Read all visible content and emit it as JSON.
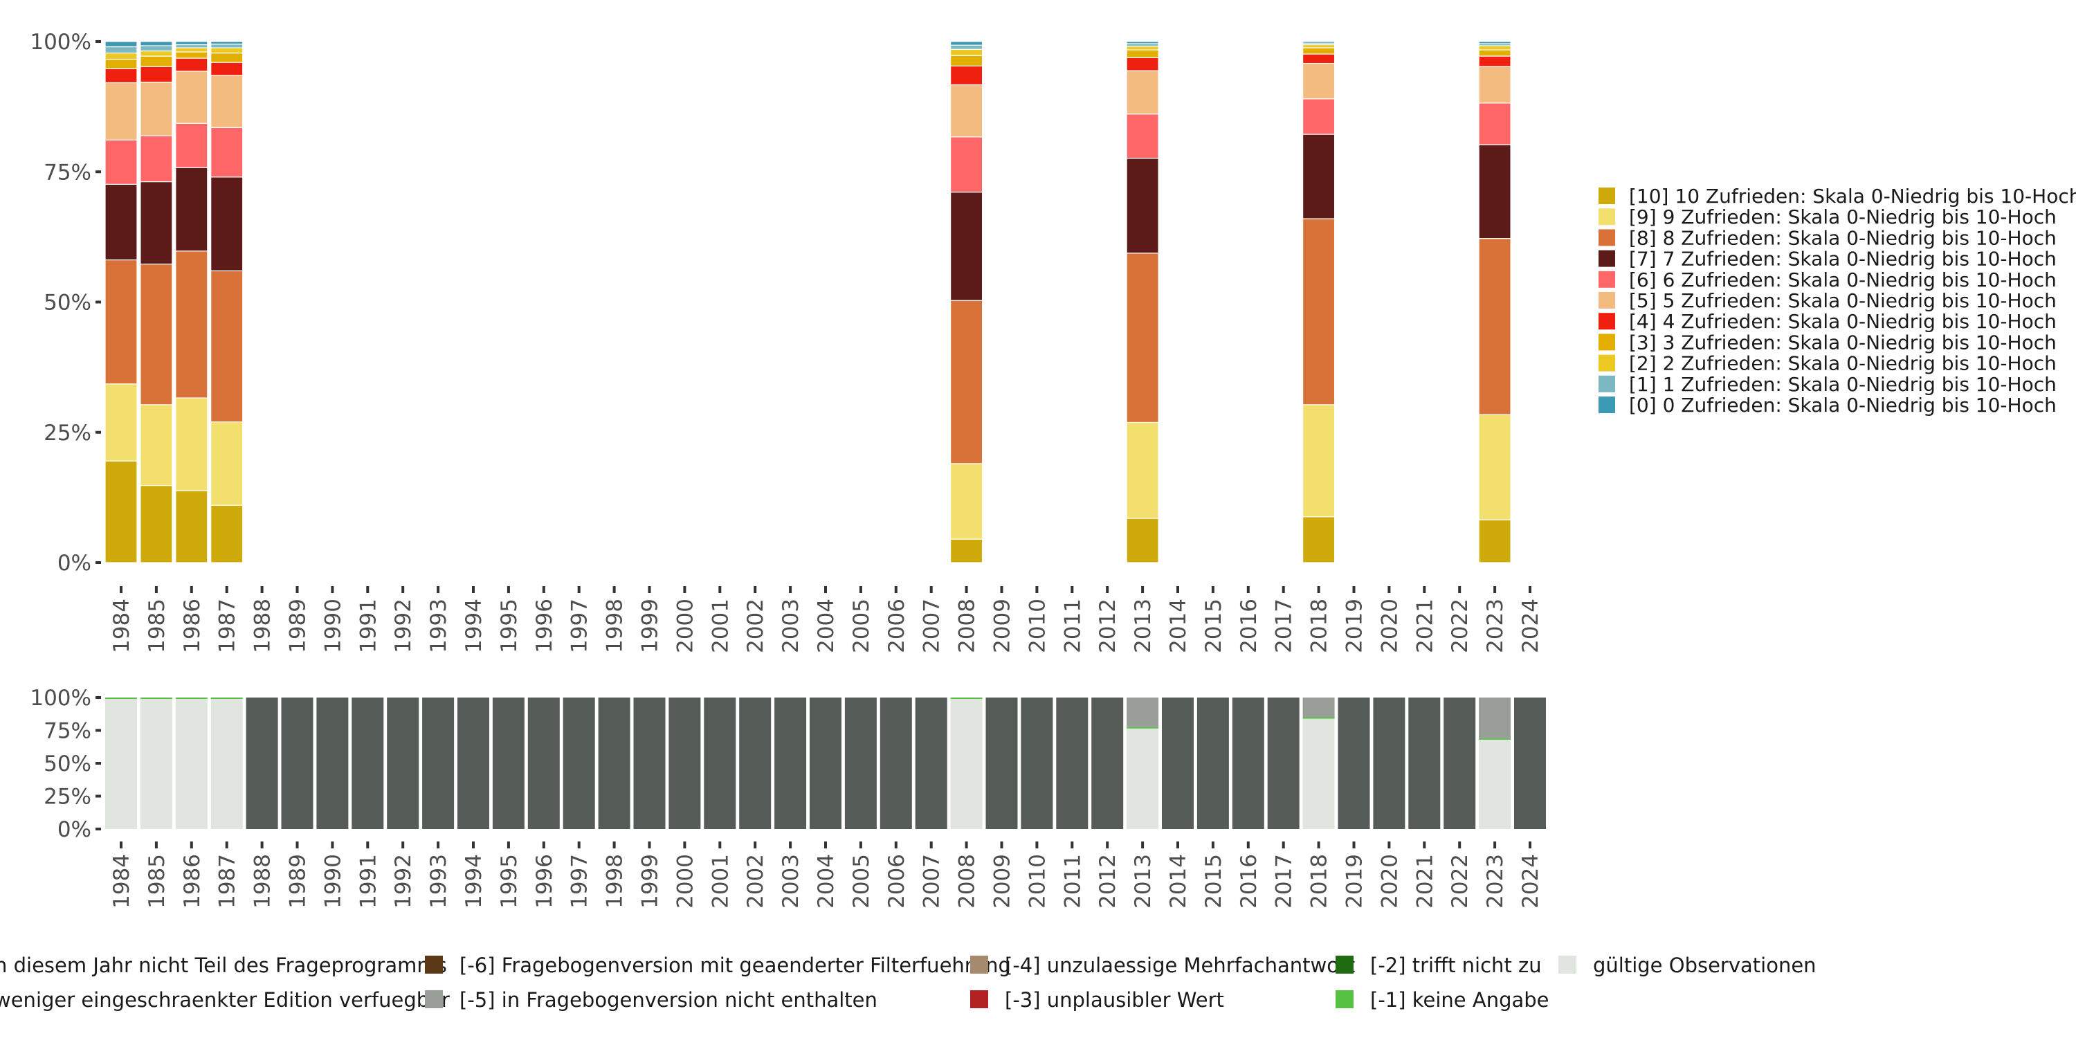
{
  "chart_data": [
    {
      "type": "bar",
      "stacked": true,
      "percent": true,
      "title": "",
      "xlabel": "",
      "ylabel": "",
      "ylim": [
        0,
        1
      ],
      "yticks": [
        "0%",
        "25%",
        "50%",
        "75%",
        "100%"
      ],
      "years": [
        "1984",
        "1985",
        "1986",
        "1987",
        "1988",
        "1989",
        "1990",
        "1991",
        "1992",
        "1993",
        "1994",
        "1995",
        "1996",
        "1997",
        "1998",
        "1999",
        "2000",
        "2001",
        "2002",
        "2003",
        "2004",
        "2005",
        "2006",
        "2007",
        "2008",
        "2009",
        "2010",
        "2011",
        "2012",
        "2013",
        "2014",
        "2015",
        "2016",
        "2017",
        "2018",
        "2019",
        "2020",
        "2021",
        "2022",
        "2023",
        "2024"
      ],
      "legend_position": "right",
      "series": [
        {
          "name": "[10] 10 Zufrieden: Skala 0-Niedrig bis 10-Hoch",
          "color": "#cfaa0b"
        },
        {
          "name": "[9] 9 Zufrieden: Skala 0-Niedrig bis 10-Hoch",
          "color": "#f2df6d"
        },
        {
          "name": "[8] 8 Zufrieden: Skala 0-Niedrig bis 10-Hoch",
          "color": "#d97238"
        },
        {
          "name": "[7] 7 Zufrieden: Skala 0-Niedrig bis 10-Hoch",
          "color": "#5c1a18"
        },
        {
          "name": "[6] 6 Zufrieden: Skala 0-Niedrig bis 10-Hoch",
          "color": "#ff6667"
        },
        {
          "name": "[5] 5 Zufrieden: Skala 0-Niedrig bis 10-Hoch",
          "color": "#f3bb80"
        },
        {
          "name": "[4] 4 Zufrieden: Skala 0-Niedrig bis 10-Hoch",
          "color": "#ef2010"
        },
        {
          "name": "[3] 3 Zufrieden: Skala 0-Niedrig bis 10-Hoch",
          "color": "#e2ae00"
        },
        {
          "name": "[2] 2 Zufrieden: Skala 0-Niedrig bis 10-Hoch",
          "color": "#ecc922"
        },
        {
          "name": "[1] 1 Zufrieden: Skala 0-Niedrig bis 10-Hoch",
          "color": "#7bb8c2"
        },
        {
          "name": "[0] 0 Zufrieden: Skala 0-Niedrig bis 10-Hoch",
          "color": "#3c9ab5"
        }
      ],
      "legend_order": [
        10,
        9,
        8,
        7,
        6,
        5,
        4,
        3,
        2,
        1,
        0
      ],
      "bars": [
        {
          "year": "1984",
          "values": [
            0.195,
            0.148,
            0.238,
            0.145,
            0.085,
            0.11,
            0.027,
            0.018,
            0.012,
            0.012,
            0.01
          ]
        },
        {
          "year": "1985",
          "values": [
            0.148,
            0.155,
            0.27,
            0.158,
            0.088,
            0.103,
            0.03,
            0.02,
            0.01,
            0.01,
            0.008
          ]
        },
        {
          "year": "1986",
          "values": [
            0.138,
            0.178,
            0.282,
            0.16,
            0.085,
            0.1,
            0.025,
            0.012,
            0.008,
            0.006,
            0.006
          ]
        },
        {
          "year": "1987",
          "values": [
            0.11,
            0.16,
            0.29,
            0.18,
            0.095,
            0.1,
            0.025,
            0.018,
            0.01,
            0.007,
            0.005
          ]
        },
        {
          "year": "2008",
          "values": [
            0.045,
            0.145,
            0.313,
            0.208,
            0.106,
            0.1,
            0.036,
            0.02,
            0.012,
            0.008,
            0.007
          ]
        },
        {
          "year": "2013",
          "values": [
            0.085,
            0.184,
            0.325,
            0.182,
            0.085,
            0.083,
            0.025,
            0.015,
            0.007,
            0.005,
            0.004
          ]
        },
        {
          "year": "2018",
          "values": [
            0.088,
            0.215,
            0.357,
            0.162,
            0.068,
            0.068,
            0.018,
            0.012,
            0.006,
            0.003,
            0.003
          ]
        },
        {
          "year": "2023",
          "values": [
            0.082,
            0.202,
            0.338,
            0.18,
            0.08,
            0.07,
            0.02,
            0.012,
            0.008,
            0.004,
            0.004
          ]
        }
      ]
    },
    {
      "type": "bar",
      "stacked": true,
      "percent": true,
      "title": "",
      "xlabel": "",
      "ylabel": "",
      "ylim": [
        0,
        1
      ],
      "yticks": [
        "0%",
        "25%",
        "50%",
        "75%",
        "100%"
      ],
      "years": [
        "1984",
        "1985",
        "1986",
        "1987",
        "1988",
        "1989",
        "1990",
        "1991",
        "1992",
        "1993",
        "1994",
        "1995",
        "1996",
        "1997",
        "1998",
        "1999",
        "2000",
        "2001",
        "2002",
        "2003",
        "2004",
        "2005",
        "2006",
        "2007",
        "2008",
        "2009",
        "2010",
        "2011",
        "2012",
        "2013",
        "2014",
        "2015",
        "2016",
        "2017",
        "2018",
        "2019",
        "2020",
        "2021",
        "2022",
        "2023",
        "2024"
      ],
      "legend_position": "bottom",
      "legend_rows": [
        [
          "n diesem Jahr nicht Teil des Frageprogramms",
          "[-6] Fragebogenversion mit geaenderter Filterfuehrung",
          "[-4] unzulaessige Mehrfachantwort",
          "[-2] trifft nicht zu",
          "gültige Observationen"
        ],
        [
          "weniger eingeschraenkter Edition verfuegbar",
          "[-5] in Fragebogenversion nicht enthalten",
          "[-3] unplausibler Wert",
          "[-1] keine Angabe"
        ]
      ],
      "legend_colors": [
        [
          "",
          "#5c3a18",
          "#a58a6e",
          "#1e6b12",
          "#e1e5e0"
        ],
        [
          "",
          "#9a9e98",
          "#b22222",
          "#55c244"
        ]
      ],
      "colors": {
        "not_in_program": "#555c58",
        "valid": "#e1e5e0",
        "version_not_contained": "#9a9e98",
        "no_answer": "#55c244"
      },
      "bars": [
        {
          "year": "1984",
          "status": "valid",
          "valid": 0.99,
          "no_answer": 0.01,
          "version_not_contained": 0
        },
        {
          "year": "1985",
          "status": "valid",
          "valid": 0.995,
          "no_answer": 0.005,
          "version_not_contained": 0
        },
        {
          "year": "1986",
          "status": "valid",
          "valid": 0.995,
          "no_answer": 0.005,
          "version_not_contained": 0
        },
        {
          "year": "1987",
          "status": "valid",
          "valid": 0.995,
          "no_answer": 0.005,
          "version_not_contained": 0
        },
        {
          "year": "1988",
          "status": "not_in_program"
        },
        {
          "year": "1989",
          "status": "not_in_program"
        },
        {
          "year": "1990",
          "status": "not_in_program"
        },
        {
          "year": "1991",
          "status": "not_in_program"
        },
        {
          "year": "1992",
          "status": "not_in_program"
        },
        {
          "year": "1993",
          "status": "not_in_program"
        },
        {
          "year": "1994",
          "status": "not_in_program"
        },
        {
          "year": "1995",
          "status": "not_in_program"
        },
        {
          "year": "1996",
          "status": "not_in_program"
        },
        {
          "year": "1997",
          "status": "not_in_program"
        },
        {
          "year": "1998",
          "status": "not_in_program"
        },
        {
          "year": "1999",
          "status": "not_in_program"
        },
        {
          "year": "2000",
          "status": "not_in_program"
        },
        {
          "year": "2001",
          "status": "not_in_program"
        },
        {
          "year": "2002",
          "status": "not_in_program"
        },
        {
          "year": "2003",
          "status": "not_in_program"
        },
        {
          "year": "2004",
          "status": "not_in_program"
        },
        {
          "year": "2005",
          "status": "not_in_program"
        },
        {
          "year": "2006",
          "status": "not_in_program"
        },
        {
          "year": "2007",
          "status": "not_in_program"
        },
        {
          "year": "2008",
          "status": "valid",
          "valid": 0.995,
          "no_answer": 0.005,
          "version_not_contained": 0
        },
        {
          "year": "2009",
          "status": "not_in_program"
        },
        {
          "year": "2010",
          "status": "not_in_program"
        },
        {
          "year": "2011",
          "status": "not_in_program"
        },
        {
          "year": "2012",
          "status": "not_in_program"
        },
        {
          "year": "2013",
          "status": "valid",
          "valid": 0.765,
          "no_answer": 0.01,
          "version_not_contained": 0.225
        },
        {
          "year": "2014",
          "status": "not_in_program"
        },
        {
          "year": "2015",
          "status": "not_in_program"
        },
        {
          "year": "2016",
          "status": "not_in_program"
        },
        {
          "year": "2017",
          "status": "not_in_program"
        },
        {
          "year": "2018",
          "status": "valid",
          "valid": 0.84,
          "no_answer": 0.01,
          "version_not_contained": 0.15
        },
        {
          "year": "2019",
          "status": "not_in_program"
        },
        {
          "year": "2020",
          "status": "not_in_program"
        },
        {
          "year": "2021",
          "status": "not_in_program"
        },
        {
          "year": "2022",
          "status": "not_in_program"
        },
        {
          "year": "2023",
          "status": "valid",
          "valid": 0.68,
          "no_answer": 0.01,
          "version_not_contained": 0.31
        },
        {
          "year": "2024",
          "status": "not_in_program"
        }
      ]
    }
  ]
}
